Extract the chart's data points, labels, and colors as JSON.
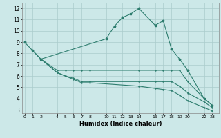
{
  "xlabel": "Humidex (Indice chaleur)",
  "bg_color": "#cce8e8",
  "grid_color": "#aacccc",
  "line_color": "#2d7d6e",
  "series1_x": [
    0,
    1,
    2,
    10,
    11,
    12,
    13,
    14,
    16,
    17,
    18,
    19,
    20,
    22,
    23
  ],
  "series1_y": [
    9.0,
    8.25,
    7.5,
    9.3,
    10.4,
    11.2,
    11.5,
    12.0,
    10.5,
    10.9,
    8.4,
    7.5,
    6.5,
    4.0,
    3.4
  ],
  "series2_x": [
    1,
    2,
    4,
    5,
    6,
    7,
    8,
    14,
    16,
    17,
    18,
    19,
    20,
    22,
    23
  ],
  "series2_y": [
    8.25,
    7.5,
    6.5,
    6.5,
    6.5,
    6.5,
    6.5,
    6.5,
    6.5,
    6.5,
    6.5,
    6.5,
    5.5,
    4.0,
    3.4
  ],
  "series3_x": [
    2,
    4,
    5,
    6,
    7,
    8,
    14,
    16,
    17,
    18,
    19,
    20,
    22,
    23
  ],
  "series3_y": [
    7.5,
    6.3,
    6.0,
    5.8,
    5.5,
    5.5,
    5.5,
    5.5,
    5.5,
    5.5,
    5.1,
    4.5,
    3.7,
    3.2
  ],
  "series4_x": [
    2,
    4,
    5,
    6,
    7,
    8,
    14,
    16,
    17,
    18,
    19,
    20,
    22,
    23
  ],
  "series4_y": [
    7.5,
    6.3,
    6.0,
    5.7,
    5.4,
    5.4,
    5.1,
    4.9,
    4.8,
    4.7,
    4.3,
    3.8,
    3.2,
    2.9
  ],
  "xticks": [
    0,
    1,
    2,
    4,
    5,
    6,
    7,
    8,
    10,
    11,
    12,
    13,
    14,
    16,
    17,
    18,
    19,
    20,
    22,
    23
  ],
  "yticks": [
    3,
    4,
    5,
    6,
    7,
    8,
    9,
    10,
    11,
    12
  ],
  "xlim": [
    -0.3,
    23.8
  ],
  "ylim": [
    2.7,
    12.5
  ]
}
